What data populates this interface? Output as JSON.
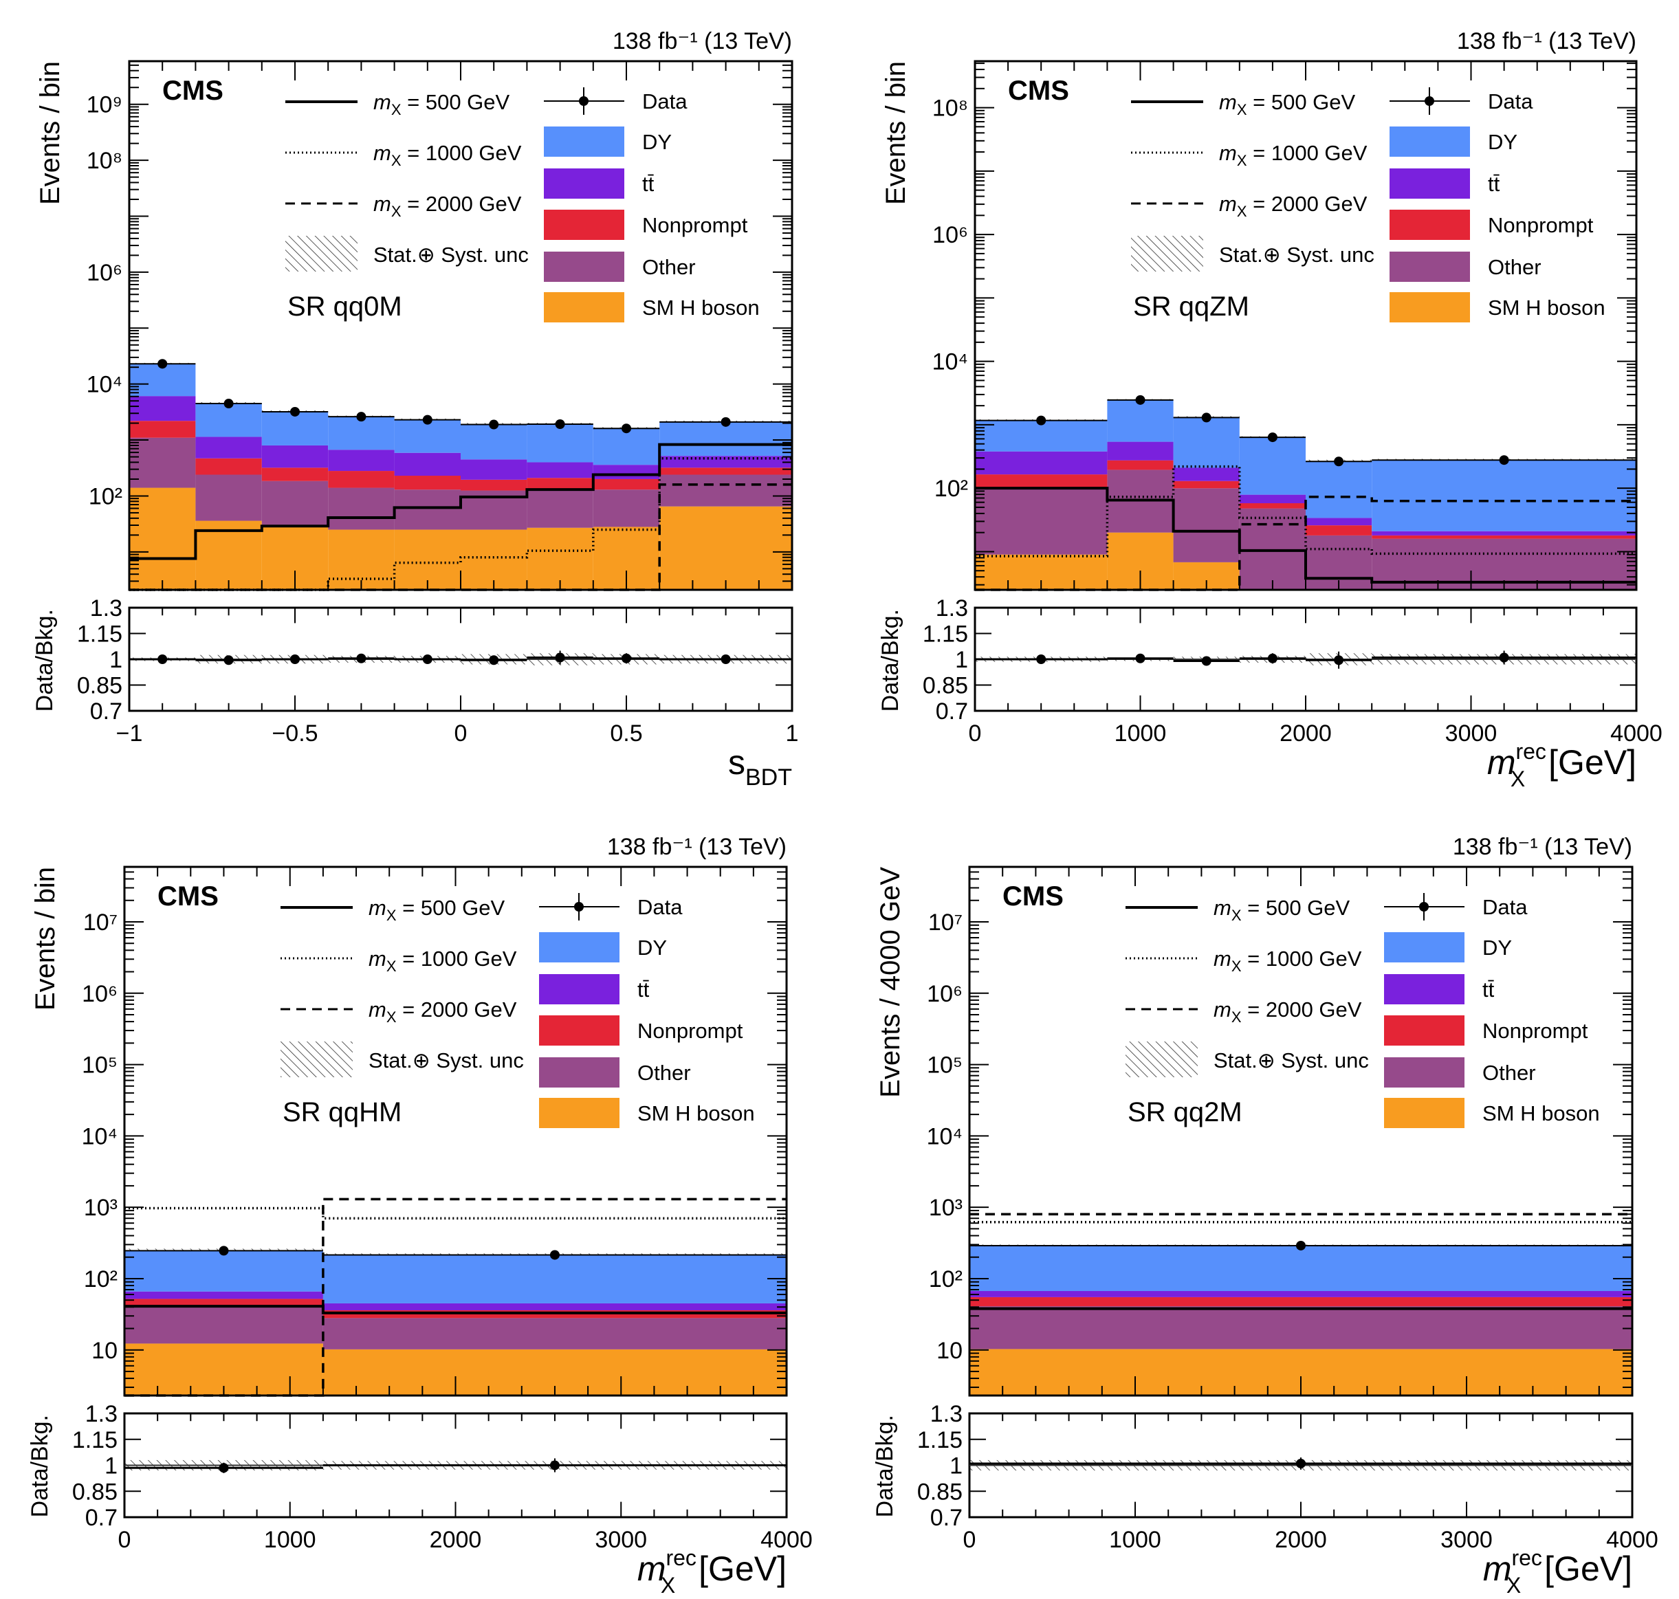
{
  "colors": {
    "DY": "#5790fc",
    "ttbar": "#7a21dd",
    "Nonprompt": "#e42536",
    "Other": "#964a8b",
    "SM H boson": "#f89c20"
  },
  "legend": {
    "signals": [
      {
        "sym": "m",
        "sub": "X",
        "rest": " = 500 GeV",
        "style": "solid"
      },
      {
        "sym": "m",
        "sub": "X",
        "rest": " = 1000 GeV",
        "style": "dotted"
      },
      {
        "sym": "m",
        "sub": "X",
        "rest": " = 2000 GeV",
        "style": "dashed"
      }
    ],
    "unc_label": "Stat.⊕ Syst. unc",
    "data_label": "Data",
    "backgrounds": [
      {
        "key": "DY",
        "label": "DY"
      },
      {
        "key": "ttbar",
        "label": "tt̄"
      },
      {
        "key": "Nonprompt",
        "label": "Nonprompt"
      },
      {
        "key": "Other",
        "label": "Other"
      },
      {
        "key": "SM H boson",
        "label": "SM H boson"
      }
    ]
  },
  "chart_data": [
    {
      "type": "bar",
      "stacked": true,
      "yscale": "log",
      "cms": "CMS",
      "lumi": "138 fb⁻¹ (13 TeV)",
      "region": "SR qq0M",
      "ylabel": "Events / bin",
      "ratio_ylabel": "Data/Bkg.",
      "xlabel": {
        "main": "s",
        "sub": "BDT",
        "sup": "",
        "unit": ""
      },
      "xlim": [
        -1,
        1
      ],
      "ylim": [
        2.1,
        5900000000.0
      ],
      "ratio_ylim": [
        0.7,
        1.3
      ],
      "xticks": [
        {
          "v": -1,
          "label": "−1"
        },
        {
          "v": -0.5,
          "label": "−0.5"
        },
        {
          "v": 0,
          "label": "0"
        },
        {
          "v": 0.5,
          "label": "0.5"
        },
        {
          "v": 1,
          "label": "1"
        }
      ],
      "xminor": 0.1,
      "yticks": [
        {
          "v": 100,
          "label": "10²"
        },
        {
          "v": 10000.0,
          "label": "10⁴"
        },
        {
          "v": 1000000.0,
          "label": "10⁶"
        },
        {
          "v": 100000000.0,
          "label": "10⁸"
        },
        {
          "v": 1000000000.0,
          "label": "10⁹"
        }
      ],
      "ratio_yticks": [
        {
          "v": 0.7,
          "label": "0.7"
        },
        {
          "v": 0.85,
          "label": "0.85"
        },
        {
          "v": 1,
          "label": "1"
        },
        {
          "v": 1.15,
          "label": "1.15"
        },
        {
          "v": 1.3,
          "label": "1.3"
        }
      ],
      "bin_edges": [
        -1,
        -0.8,
        -0.6,
        -0.4,
        -0.2,
        0,
        0.2,
        0.4,
        0.6,
        1
      ],
      "stack": {
        "SM H boson": [
          140,
          36,
          28,
          25,
          25,
          25,
          27,
          28,
          65
        ],
        "Other": [
          960,
          204,
          157,
          115,
          105,
          100,
          98,
          102,
          175
        ],
        "Nonprompt": [
          1100,
          230,
          135,
          140,
          100,
          70,
          85,
          70,
          80
        ],
        "ttbar": [
          3900,
          670,
          480,
          390,
          360,
          255,
          190,
          160,
          200
        ],
        "DY": [
          16900,
          3360,
          2400,
          1930,
          1710,
          1450,
          1500,
          1240,
          1580
        ]
      },
      "signals": {
        "500": [
          7.6,
          24,
          29,
          41,
          62,
          96,
          130,
          240,
          830
        ],
        "1000": [
          0,
          0,
          0,
          3.3,
          6.4,
          8,
          10.5,
          25,
          470
        ],
        "2000": [
          0,
          0,
          0,
          0,
          0,
          0,
          0,
          0,
          160
        ]
      },
      "data": [
        23000,
        4480,
        3200,
        2610,
        2300,
        1890,
        1920,
        1610,
        2100
      ],
      "ratio": [
        1.0,
        0.995,
        1.0,
        1.005,
        1.0,
        0.995,
        1.01,
        1.005,
        1.0
      ],
      "ratio_err": [
        0.005,
        0.015,
        0.02,
        0.02,
        0.02,
        0.025,
        0.04,
        0.03,
        0.02
      ],
      "ratio_unc": [
        0.01,
        0.025,
        0.025,
        0.02,
        0.02,
        0.03,
        0.035,
        0.03,
        0.025
      ]
    },
    {
      "type": "bar",
      "stacked": true,
      "yscale": "log",
      "cms": "CMS",
      "lumi": "138 fb⁻¹ (13 TeV)",
      "region": "SR qqZM",
      "ylabel": "Events / bin",
      "ratio_ylabel": "Data/Bkg.",
      "xlabel": {
        "main": "m",
        "sub": "X",
        "sup": "rec",
        "unit": " [GeV]"
      },
      "xlim": [
        0,
        4000
      ],
      "ylim": [
        2.5,
        540000000.0
      ],
      "ratio_ylim": [
        0.7,
        1.3
      ],
      "xticks": [
        {
          "v": 0,
          "label": "0"
        },
        {
          "v": 1000,
          "label": "1000"
        },
        {
          "v": 2000,
          "label": "2000"
        },
        {
          "v": 3000,
          "label": "3000"
        },
        {
          "v": 4000,
          "label": "4000"
        }
      ],
      "xminor": 200,
      "yticks": [
        {
          "v": 100,
          "label": "10²"
        },
        {
          "v": 10000.0,
          "label": "10⁴"
        },
        {
          "v": 1000000.0,
          "label": "10⁶"
        },
        {
          "v": 100000000.0,
          "label": "10⁸"
        }
      ],
      "ratio_yticks": [
        {
          "v": 0.7,
          "label": "0.7"
        },
        {
          "v": 0.85,
          "label": "0.85"
        },
        {
          "v": 1,
          "label": "1"
        },
        {
          "v": 1.15,
          "label": "1.15"
        },
        {
          "v": 1.3,
          "label": "1.3"
        }
      ],
      "bin_edges": [
        0,
        800,
        1200,
        1600,
        2000,
        2400,
        4000
      ],
      "stack": {
        "SM H boson": [
          9,
          20,
          6.8,
          0,
          0,
          0
        ],
        "Other": [
          91,
          175,
          93,
          48,
          18,
          16
        ],
        "Nonprompt": [
          65,
          80,
          30,
          10,
          8,
          2
        ],
        "ttbar": [
          215,
          265,
          80,
          21,
          8,
          3
        ],
        "DY": [
          790,
          1910,
          1100,
          551,
          231,
          254
        ]
      },
      "signals": {
        "500": [
          100,
          65,
          21,
          10.4,
          3.8,
          3.3
        ],
        "1000": [
          8.5,
          73,
          220,
          34,
          11,
          9.3
        ],
        "2000": [
          0,
          0,
          0,
          27,
          73,
          63
        ]
      },
      "data": [
        1170,
        2460,
        1300,
        635,
        264,
        278
      ],
      "ratio": [
        1.0,
        1.005,
        0.99,
        1.005,
        0.995,
        1.01
      ],
      "ratio_err": [
        0.02,
        0.015,
        0.02,
        0.03,
        0.05,
        0.04
      ],
      "ratio_unc": [
        0.015,
        0.01,
        0.015,
        0.02,
        0.035,
        0.03
      ]
    },
    {
      "type": "bar",
      "stacked": true,
      "yscale": "log",
      "cms": "CMS",
      "lumi": "138 fb⁻¹ (13 TeV)",
      "region": "SR qqHM",
      "ylabel": "Events / bin",
      "ratio_ylabel": "Data/Bkg.",
      "xlabel": {
        "main": "m",
        "sub": "X",
        "sup": "rec",
        "unit": " [GeV]"
      },
      "xlim": [
        0,
        4000
      ],
      "ylim": [
        2.3,
        59000000.0
      ],
      "ratio_ylim": [
        0.7,
        1.3
      ],
      "xticks": [
        {
          "v": 0,
          "label": "0"
        },
        {
          "v": 1000,
          "label": "1000"
        },
        {
          "v": 2000,
          "label": "2000"
        },
        {
          "v": 3000,
          "label": "3000"
        },
        {
          "v": 4000,
          "label": "4000"
        }
      ],
      "xminor": 200,
      "yticks": [
        {
          "v": 10,
          "label": "10"
        },
        {
          "v": 100,
          "label": "10²"
        },
        {
          "v": 1000,
          "label": "10³"
        },
        {
          "v": 10000.0,
          "label": "10⁴"
        },
        {
          "v": 100000.0,
          "label": "10⁵"
        },
        {
          "v": 1000000.0,
          "label": "10⁶"
        },
        {
          "v": 10000000.0,
          "label": "10⁷"
        }
      ],
      "ratio_yticks": [
        {
          "v": 0.7,
          "label": "0.7"
        },
        {
          "v": 0.85,
          "label": "0.85"
        },
        {
          "v": 1,
          "label": "1"
        },
        {
          "v": 1.15,
          "label": "1.15"
        },
        {
          "v": 1.3,
          "label": "1.3"
        }
      ],
      "bin_edges": [
        0,
        1200,
        4000
      ],
      "stack": {
        "SM H boson": [
          12.3,
          10.2
        ],
        "Other": [
          28.7,
          17.8
        ],
        "Nonprompt": [
          11,
          8
        ],
        "ttbar": [
          14,
          9
        ],
        "DY": [
          184,
          170
        ]
      },
      "signals": {
        "500": [
          41,
          33
        ],
        "1000": [
          970,
          700
        ],
        "2000": [
          0,
          1300
        ]
      },
      "data": [
        246,
        215
      ],
      "ratio": [
        0.985,
        1.0
      ],
      "ratio_err": [
        0.03,
        0.04
      ],
      "ratio_unc": [
        0.03,
        0.025
      ]
    },
    {
      "type": "bar",
      "stacked": true,
      "yscale": "log",
      "cms": "CMS",
      "lumi": "138 fb⁻¹ (13 TeV)",
      "region": "SR qq2M",
      "ylabel": "Events / 4000 GeV",
      "ratio_ylabel": "Data/Bkg.",
      "xlabel": {
        "main": "m",
        "sub": "X",
        "sup": "rec",
        "unit": " [GeV]"
      },
      "xlim": [
        0,
        4000
      ],
      "ylim": [
        2.3,
        59000000.0
      ],
      "ratio_ylim": [
        0.7,
        1.3
      ],
      "xticks": [
        {
          "v": 0,
          "label": "0"
        },
        {
          "v": 1000,
          "label": "1000"
        },
        {
          "v": 2000,
          "label": "2000"
        },
        {
          "v": 3000,
          "label": "3000"
        },
        {
          "v": 4000,
          "label": "4000"
        }
      ],
      "xminor": 200,
      "yticks": [
        {
          "v": 10,
          "label": "10"
        },
        {
          "v": 100,
          "label": "10²"
        },
        {
          "v": 1000,
          "label": "10³"
        },
        {
          "v": 10000.0,
          "label": "10⁴"
        },
        {
          "v": 100000.0,
          "label": "10⁵"
        },
        {
          "v": 1000000.0,
          "label": "10⁶"
        },
        {
          "v": 10000000.0,
          "label": "10⁷"
        }
      ],
      "ratio_yticks": [
        {
          "v": 0.7,
          "label": "0.7"
        },
        {
          "v": 0.85,
          "label": "0.85"
        },
        {
          "v": 1,
          "label": "1"
        },
        {
          "v": 1.15,
          "label": "1.15"
        },
        {
          "v": 1.3,
          "label": "1.3"
        }
      ],
      "bin_edges": [
        0,
        4000
      ],
      "stack": {
        "SM H boson": [
          10.3
        ],
        "Other": [
          30.7
        ],
        "Nonprompt": [
          14
        ],
        "ttbar": [
          12
        ],
        "DY": [
          218
        ]
      },
      "signals": {
        "500": [
          38
        ],
        "1000": [
          620
        ],
        "2000": [
          800
        ]
      },
      "data": [
        290
      ],
      "ratio": [
        1.01
      ],
      "ratio_err": [
        0.035
      ],
      "ratio_unc": [
        0.03
      ]
    }
  ]
}
